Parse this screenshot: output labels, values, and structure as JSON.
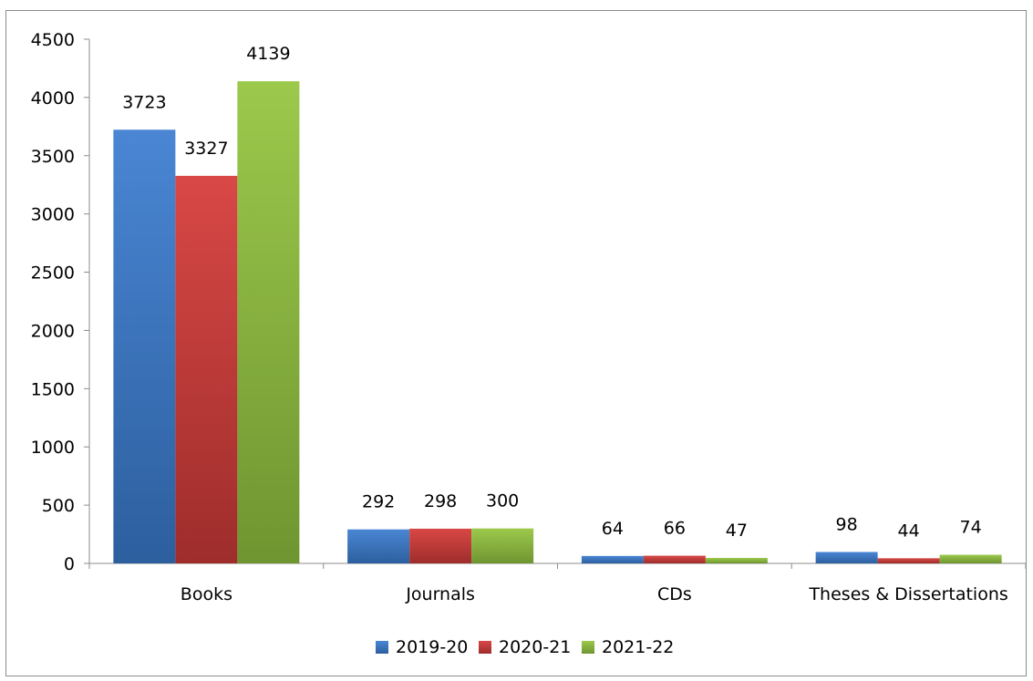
{
  "chart_data": {
    "type": "bar",
    "categories": [
      "Books",
      "Journals",
      "CDs",
      "Theses & Dissertations"
    ],
    "series": [
      {
        "name": "2019-20",
        "values": [
          3723,
          292,
          64,
          98
        ]
      },
      {
        "name": "2020-21",
        "values": [
          3327,
          298,
          66,
          44
        ]
      },
      {
        "name": "2021-22",
        "values": [
          4139,
          300,
          47,
          74
        ]
      }
    ],
    "ylim": [
      0,
      4500
    ],
    "yticks": [
      0,
      500,
      1000,
      1500,
      2000,
      2500,
      3000,
      3500,
      4000,
      4500
    ],
    "title": "",
    "xlabel": "",
    "ylabel": "",
    "grid": false,
    "legend_position": "bottom",
    "colors": {
      "2019-20": [
        "#4a86d4",
        "#2c5f9e"
      ],
      "2020-21": [
        "#d84846",
        "#9e2d2b"
      ],
      "2021-22": [
        "#9cc94c",
        "#6f9531"
      ]
    }
  }
}
